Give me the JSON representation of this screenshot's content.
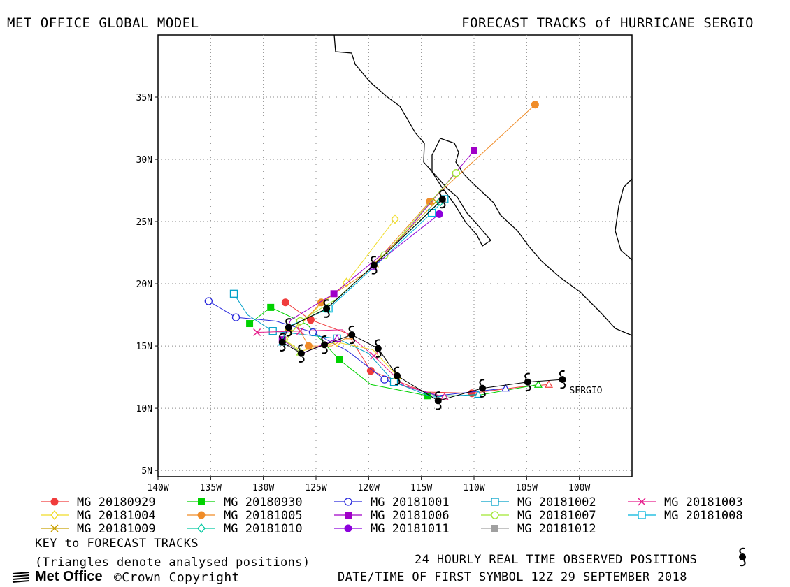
{
  "header": {
    "left_title": "MET OFFICE GLOBAL MODEL",
    "right_title": "FORECAST TRACKS of HURRICANE SERGIO"
  },
  "map": {
    "lon_range": [
      -140,
      -95
    ],
    "lat_range": [
      4.5,
      40
    ],
    "x_ticks": [
      {
        "lon": -140,
        "label": "140W"
      },
      {
        "lon": -135,
        "label": "135W"
      },
      {
        "lon": -130,
        "label": "130W"
      },
      {
        "lon": -125,
        "label": "125W"
      },
      {
        "lon": -120,
        "label": "120W"
      },
      {
        "lon": -115,
        "label": "115W"
      },
      {
        "lon": -110,
        "label": "110W"
      },
      {
        "lon": -105,
        "label": "105W"
      },
      {
        "lon": -100,
        "label": "100W"
      }
    ],
    "y_ticks": [
      {
        "lat": 5,
        "label": "5N"
      },
      {
        "lat": 10,
        "label": "10N"
      },
      {
        "lat": 15,
        "label": "15N"
      },
      {
        "lat": 20,
        "label": "20N"
      },
      {
        "lat": 25,
        "label": "25N"
      },
      {
        "lat": 30,
        "label": "30N"
      },
      {
        "lat": 35,
        "label": "35N"
      }
    ],
    "grid": "dotted",
    "storm_label": "SERGIO"
  },
  "chart_data": {
    "type": "scatter",
    "x_unit": "longitude (degrees)",
    "y_unit": "latitude (degrees)",
    "observed_track": [
      [
        -101.6,
        12.3
      ],
      [
        -104.9,
        12.1
      ],
      [
        -109.2,
        11.6
      ],
      [
        -113.4,
        10.6
      ],
      [
        -117.3,
        12.6
      ],
      [
        -119.1,
        14.8
      ],
      [
        -121.6,
        15.9
      ],
      [
        -124.2,
        15.1
      ],
      [
        -126.4,
        14.4
      ],
      [
        -128.2,
        15.3
      ],
      [
        -127.6,
        16.5
      ],
      [
        -124.0,
        18.0
      ],
      [
        -119.5,
        21.5
      ],
      [
        -113.0,
        26.8
      ]
    ],
    "series": [
      {
        "name": "MG 20180929",
        "color": "#f03c3c",
        "marker": "circle-filled",
        "points": [
          [
            -102.9,
            11.9
          ],
          [
            -105.7,
            11.7
          ],
          [
            -110.2,
            11.2
          ],
          [
            -114.6,
            11.3
          ],
          [
            -119.8,
            13.0
          ],
          [
            -122.0,
            16.0
          ],
          [
            -125.5,
            17.1
          ],
          [
            -127.9,
            18.5
          ]
        ]
      },
      {
        "name": "MG 20180930",
        "color": "#00d200",
        "marker": "square-filled",
        "points": [
          [
            -103.9,
            11.9
          ],
          [
            -109.8,
            11.0
          ],
          [
            -114.4,
            11.0
          ],
          [
            -119.8,
            11.9
          ],
          [
            -122.8,
            13.9
          ],
          [
            -125.8,
            16.7
          ],
          [
            -129.3,
            18.1
          ],
          [
            -131.3,
            16.8
          ]
        ]
      },
      {
        "name": "MG 20181001",
        "color": "#2828dc",
        "marker": "circle-open",
        "points": [
          [
            -107.0,
            11.6
          ],
          [
            -113.5,
            11.0
          ],
          [
            -118.5,
            12.3
          ],
          [
            -122.0,
            14.6
          ],
          [
            -125.3,
            16.1
          ],
          [
            -128.8,
            17.0
          ],
          [
            -132.6,
            17.3
          ],
          [
            -135.2,
            18.6
          ]
        ]
      },
      {
        "name": "MG 20181002",
        "color": "#00a0c8",
        "marker": "square-open",
        "points": [
          [
            -109.6,
            11.1
          ],
          [
            -114.0,
            10.9
          ],
          [
            -117.6,
            12.1
          ],
          [
            -120.0,
            14.4
          ],
          [
            -123.0,
            15.6
          ],
          [
            -126.0,
            15.9
          ],
          [
            -129.1,
            16.2
          ],
          [
            -131.5,
            17.5
          ],
          [
            -132.8,
            19.2
          ]
        ]
      },
      {
        "name": "MG 20181003",
        "color": "#e61e8c",
        "marker": "x",
        "points": [
          [
            -112.8,
            10.9
          ],
          [
            -116.6,
            11.8
          ],
          [
            -119.5,
            14.2
          ],
          [
            -122.5,
            16.3
          ],
          [
            -126.5,
            16.2
          ],
          [
            -130.6,
            16.1
          ]
        ]
      },
      {
        "name": "MG 20181004",
        "color": "#f0dc28",
        "marker": "diamond-open",
        "points": [
          [
            -117.3,
            12.6
          ],
          [
            -119.6,
            14.7
          ],
          [
            -123.0,
            15.3
          ],
          [
            -126.4,
            14.6
          ],
          [
            -128.0,
            15.5
          ],
          [
            -126.3,
            17.0
          ],
          [
            -122.1,
            20.1
          ],
          [
            -117.5,
            25.2
          ]
        ]
      },
      {
        "name": "MG 20181005",
        "color": "#f08c28",
        "marker": "circle-filled",
        "points": [
          [
            -121.8,
            15.8
          ],
          [
            -123.5,
            15.0
          ],
          [
            -125.7,
            15.0
          ],
          [
            -126.7,
            16.5
          ],
          [
            -124.5,
            18.5
          ],
          [
            -120.1,
            21.0
          ],
          [
            -114.2,
            26.6
          ],
          [
            -104.2,
            34.4
          ]
        ]
      },
      {
        "name": "MG 20181006",
        "color": "#a000c8",
        "marker": "square-filled",
        "points": [
          [
            -123.0,
            15.6
          ],
          [
            -126.3,
            14.4
          ],
          [
            -128.2,
            15.5
          ],
          [
            -127.4,
            17.1
          ],
          [
            -123.3,
            19.2
          ],
          [
            -117.1,
            23.5
          ],
          [
            -110.0,
            30.7
          ]
        ]
      },
      {
        "name": "MG 20181007",
        "color": "#a0e632",
        "marker": "circle-open",
        "points": [
          [
            -126.5,
            14.5
          ],
          [
            -127.9,
            15.4
          ],
          [
            -126.5,
            17.0
          ],
          [
            -123.0,
            18.8
          ],
          [
            -118.5,
            22.3
          ],
          [
            -113.7,
            27.0
          ],
          [
            -111.7,
            28.9
          ]
        ]
      },
      {
        "name": "MG 20181008",
        "color": "#00b4dc",
        "marker": "square-open",
        "points": [
          [
            -128.2,
            15.3
          ],
          [
            -127.8,
            16.5
          ],
          [
            -123.8,
            18.0
          ],
          [
            -119.3,
            21.5
          ],
          [
            -114.0,
            25.7
          ],
          [
            -112.8,
            26.8
          ]
        ]
      },
      {
        "name": "MG 20181009",
        "color": "#c8a000",
        "marker": "x",
        "points": [
          [
            -127.6,
            16.5
          ],
          [
            -124.0,
            18.0
          ],
          [
            -119.4,
            21.6
          ],
          [
            -113.6,
            26.6
          ]
        ]
      },
      {
        "name": "MG 20181010",
        "color": "#00c8a0",
        "marker": "diamond-open",
        "points": [
          [
            -124.0,
            18.0
          ],
          [
            -119.5,
            21.5
          ],
          [
            -113.2,
            26.6
          ]
        ]
      },
      {
        "name": "MG 20181011",
        "color": "#8c00dc",
        "marker": "circle-filled",
        "points": [
          [
            -119.6,
            21.4
          ],
          [
            -113.3,
            25.6
          ]
        ]
      },
      {
        "name": "MG 20181012",
        "color": "#a0a0a0",
        "marker": "square-filled",
        "points": [
          [
            -113.0,
            26.8
          ]
        ]
      }
    ]
  },
  "legend": {
    "items": [
      {
        "label": "MG 20180929",
        "color": "#f03c3c",
        "marker": "circle-filled"
      },
      {
        "label": "MG 20180930",
        "color": "#00d200",
        "marker": "square-filled"
      },
      {
        "label": "MG 20181001",
        "color": "#2828dc",
        "marker": "circle-open"
      },
      {
        "label": "MG 20181002",
        "color": "#00a0c8",
        "marker": "square-open"
      },
      {
        "label": "MG 20181003",
        "color": "#e61e8c",
        "marker": "x"
      },
      {
        "label": "MG 20181004",
        "color": "#f0dc28",
        "marker": "diamond-open"
      },
      {
        "label": "MG 20181005",
        "color": "#f08c28",
        "marker": "circle-filled"
      },
      {
        "label": "MG 20181006",
        "color": "#a000c8",
        "marker": "square-filled"
      },
      {
        "label": "MG 20181007",
        "color": "#a0e632",
        "marker": "circle-open"
      },
      {
        "label": "MG 20181008",
        "color": "#00b4dc",
        "marker": "square-open"
      },
      {
        "label": "MG 20181009",
        "color": "#c8a000",
        "marker": "x"
      },
      {
        "label": "MG 20181010",
        "color": "#00c8a0",
        "marker": "diamond-open"
      },
      {
        "label": "MG 20181011",
        "color": "#8c00dc",
        "marker": "circle-filled"
      },
      {
        "label": "MG 20181012",
        "color": "#a0a0a0",
        "marker": "square-filled"
      }
    ]
  },
  "footer": {
    "key_title": "KEY to FORECAST TRACKS",
    "triangle_note": "(Triangles denote analysed positions)",
    "observed_note": "24 HOURLY REAL TIME OBSERVED POSITIONS",
    "first_symbol_note": "DATE/TIME OF FIRST SYMBOL 12Z 29 SEPTEMBER 2018",
    "logo_text": "Met Office",
    "copyright": "©Crown Copyright"
  }
}
